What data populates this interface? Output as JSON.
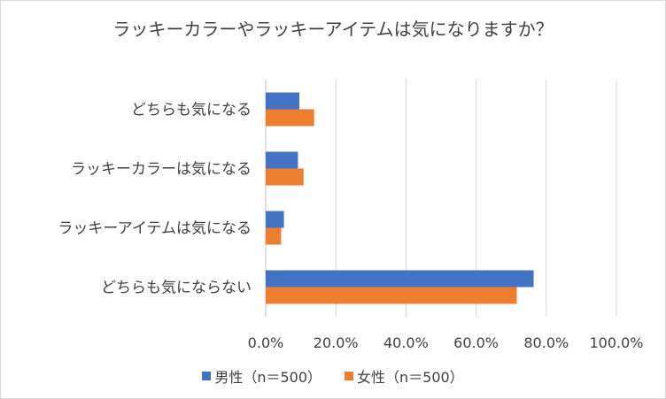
{
  "chart_data": {
    "type": "bar",
    "orientation": "horizontal",
    "title": "ラッキーカラーやラッキーアイテムは気になりますか？",
    "categories": [
      "どちらも気になる",
      "ラッキーカラーは気になる",
      "ラッキーアイテムは気になる",
      "どちらも気にならない"
    ],
    "series": [
      {
        "name": "男性（n＝500）",
        "color": "#4472c4",
        "values": [
          9.6,
          9.2,
          5.2,
          76.4
        ]
      },
      {
        "name": "女性（n＝500）",
        "color": "#ed7d31",
        "values": [
          13.8,
          10.8,
          4.4,
          71.6
        ]
      }
    ],
    "xlim": [
      0,
      100
    ],
    "x_ticks": [
      "0.0%",
      "20.0%",
      "40.0%",
      "60.0%",
      "80.0%",
      "100.0%"
    ],
    "grid": true,
    "legend": "bottom"
  }
}
